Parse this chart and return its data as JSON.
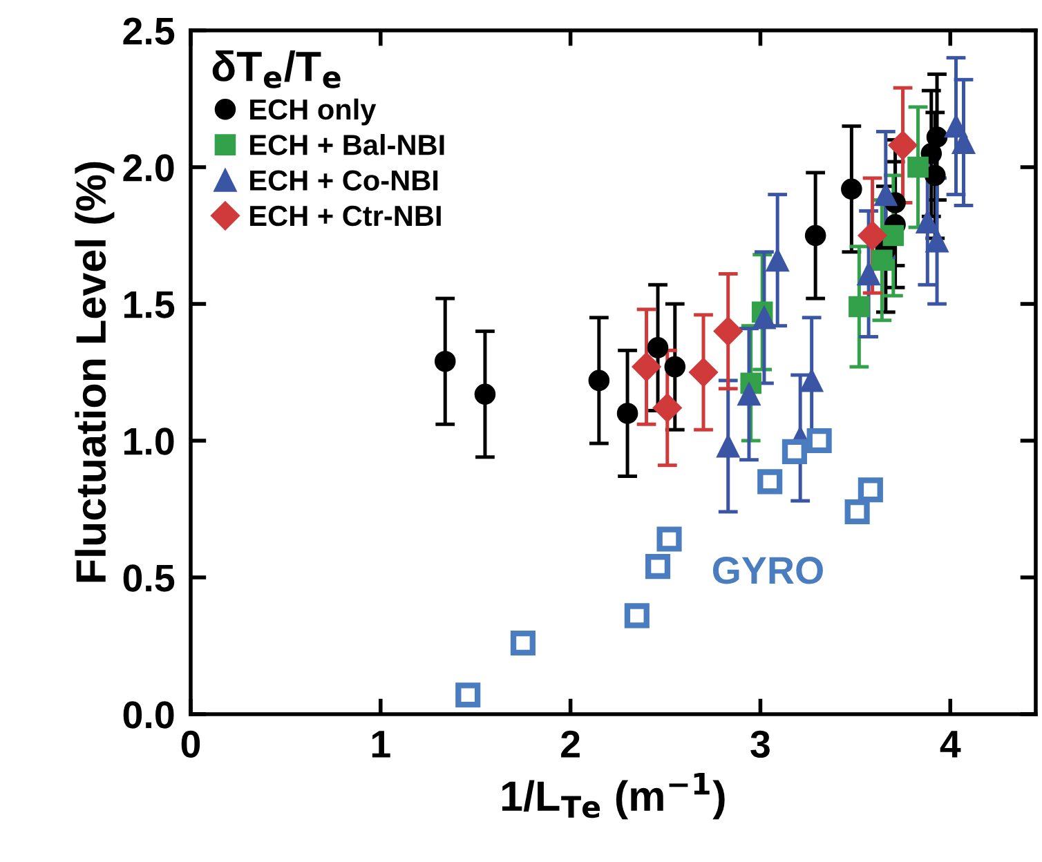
{
  "chart_data": {
    "type": "scatter",
    "xlabel": "1/L$_{Te}$ (m$^{−1}$)",
    "ylabel": "Fluctuation Level (%)",
    "legend_title": "δT$_{e}$/T$_{e}$",
    "legend": "top left",
    "grid": false,
    "xlim": [
      0,
      4.45
    ],
    "xticks": [
      0,
      1,
      2,
      3,
      4
    ],
    "ylim": [
      0,
      2.5
    ],
    "yticks": [
      {
        "value": 0,
        "label": "0.0"
      },
      {
        "value": 0.5,
        "label": "0.5"
      },
      {
        "value": 1,
        "label": "1.0"
      },
      {
        "value": 1.5,
        "label": "1.5"
      },
      {
        "value": 2,
        "label": "2.0"
      },
      {
        "value": 2.5,
        "label": "2.5"
      }
    ],
    "series": [
      {
        "name": "ECH only",
        "color": "#000000",
        "marker": "circle",
        "x": [
          1.34,
          1.55,
          2.15,
          2.3,
          2.46,
          2.55,
          3.29,
          3.48,
          3.66,
          3.71,
          3.71,
          3.92,
          3.9,
          3.93
        ],
        "values": [
          1.29,
          1.17,
          1.22,
          1.1,
          1.34,
          1.27,
          1.75,
          1.92,
          1.7,
          1.79,
          1.87,
          1.97,
          2.05,
          2.11
        ],
        "errors": [
          0.23,
          0.23,
          0.23,
          0.23,
          0.23,
          0.23,
          0.23,
          0.23,
          0.23,
          0.23,
          0.23,
          0.23,
          0.23,
          0.23
        ]
      },
      {
        "name": "ECH + Bal-NBI",
        "color": "#33a04a",
        "marker": "square",
        "x": [
          2.95,
          3.01,
          3.52,
          3.64,
          3.7,
          3.83
        ],
        "values": [
          1.21,
          1.47,
          1.49,
          1.66,
          1.75,
          2.0
        ],
        "errors": [
          0.21,
          0.21,
          0.22,
          0.22,
          0.22,
          0.22
        ]
      },
      {
        "name": "ECH + Co-NBI",
        "color": "#3a55a4",
        "marker": "triangle",
        "x": [
          2.83,
          2.94,
          3.02,
          3.09,
          3.21,
          3.27,
          3.57,
          3.66,
          3.88,
          3.93,
          4.03,
          4.07
        ],
        "values": [
          0.98,
          1.17,
          1.45,
          1.66,
          1.01,
          1.22,
          1.61,
          1.9,
          1.8,
          1.73,
          2.15,
          2.09
        ],
        "errors": [
          0.24,
          0.24,
          0.24,
          0.24,
          0.23,
          0.23,
          0.23,
          0.23,
          0.23,
          0.23,
          0.25,
          0.23
        ]
      },
      {
        "name": "ECH + Ctr-NBI",
        "color": "#d03a3a",
        "marker": "diamond",
        "x": [
          2.4,
          2.51,
          2.7,
          2.83,
          3.59,
          3.75
        ],
        "values": [
          1.27,
          1.12,
          1.25,
          1.4,
          1.75,
          2.08
        ],
        "errors": [
          0.21,
          0.21,
          0.21,
          0.21,
          0.21,
          0.21
        ]
      },
      {
        "name": "GYRO",
        "color": "#4a7cc0",
        "marker": "square",
        "x": [
          1.46,
          1.75,
          2.35,
          2.46,
          2.52,
          3.05,
          3.18,
          3.31,
          3.51,
          3.58
        ],
        "values": [
          0.07,
          0.26,
          0.36,
          0.54,
          0.64,
          0.85,
          0.96,
          1.0,
          0.74,
          0.82
        ]
      }
    ]
  }
}
